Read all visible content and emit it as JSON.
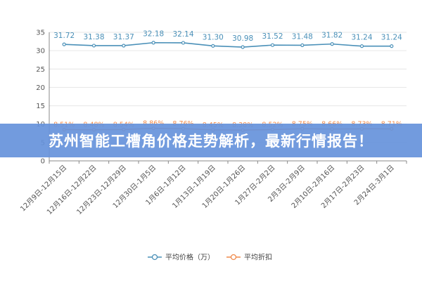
{
  "banner": {
    "text": "苏州智能工槽角价格走势解析，最新行情报告！"
  },
  "colors": {
    "price": "#4a90b8",
    "discount": "#f08a4b",
    "banner": "#6692db",
    "axis": "#888888",
    "grid": "#e6e6e6"
  },
  "chart_data": {
    "type": "line",
    "categories": [
      "12月9日-12月15日",
      "12月16日-12月22日",
      "12月23日-12月29日",
      "12月30日-1月5日",
      "1月6日-1月12日",
      "1月13日-1月19日",
      "1月20日-1月26日",
      "1月27日-2月2日",
      "2月3日-2月9日",
      "2月10日-2月16日",
      "2月17日-2月23日",
      "2月24日-3月1日"
    ],
    "series": [
      {
        "name": "平均价格（万）",
        "values": [
          31.72,
          31.38,
          31.37,
          32.18,
          32.14,
          31.3,
          30.98,
          31.52,
          31.48,
          31.82,
          31.24,
          31.24
        ],
        "labels": [
          "31.72",
          "31.38",
          "31.37",
          "32.18",
          "32.14",
          "31.30",
          "30.98",
          "31.52",
          "31.48",
          "31.82",
          "31.24",
          "31.24"
        ]
      },
      {
        "name": "平均折扣",
        "values": [
          8.51,
          8.48,
          8.54,
          8.86,
          8.76,
          8.45,
          8.38,
          8.52,
          8.75,
          8.66,
          8.73,
          8.71
        ],
        "labels": [
          "8.51%",
          "8.48%",
          "8.54%",
          "8.86%",
          "8.76%",
          "8.45%",
          "8.38%",
          "8.52%",
          "8.75%",
          "8.66%",
          "8.73%",
          "8.71%"
        ]
      }
    ],
    "yticks": [
      "0",
      "5",
      "10",
      "15",
      "20",
      "25",
      "30",
      "35"
    ],
    "ylim": [
      0,
      35
    ],
    "legend_position": "bottom-center"
  }
}
